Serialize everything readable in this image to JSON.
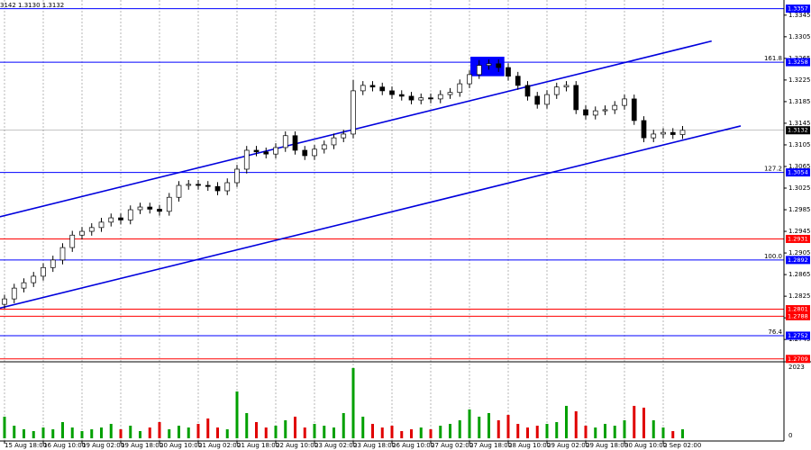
{
  "chart_data": {
    "type": "candlestick",
    "header": "3142 1.3130 1.3132",
    "categories": [
      "15 Aug 18:00",
      null,
      null,
      null,
      "16 Aug 10:00",
      null,
      null,
      null,
      "19 Aug 02:00",
      null,
      null,
      null,
      "19 Aug 18:00",
      null,
      null,
      null,
      "20 Aug 10:00",
      null,
      null,
      null,
      "21 Aug 02:00",
      null,
      null,
      null,
      "21 Aug 18:00",
      null,
      null,
      null,
      "22 Aug 10:00",
      null,
      null,
      null,
      "23 Aug 02:00",
      null,
      null,
      null,
      "23 Aug 18:00",
      null,
      null,
      null,
      "26 Aug 10:00",
      null,
      null,
      null,
      "27 Aug 02:00",
      null,
      null,
      null,
      "27 Aug 18:00",
      null,
      null,
      null,
      "28 Aug 10:00",
      null,
      null,
      null,
      "29 Aug 02:00",
      null,
      null,
      null,
      "29 Aug 18:00",
      null,
      null,
      null,
      "30 Aug 10:00",
      null,
      null,
      null,
      "2 Sep 02:00",
      null,
      null
    ],
    "open": [
      1.281,
      1.282,
      1.284,
      1.285,
      1.2862,
      1.2878,
      1.2892,
      1.2915,
      1.2938,
      1.2945,
      1.2952,
      1.2962,
      1.297,
      1.2966,
      1.2985,
      1.299,
      1.2986,
      1.2982,
      1.3008,
      1.303,
      1.3032,
      1.303,
      1.3028,
      1.302,
      1.3035,
      1.306,
      1.3095,
      1.3092,
      1.3088,
      1.31,
      1.3122,
      1.3095,
      1.3085,
      1.3097,
      1.3105,
      1.3118,
      1.3125,
      1.3205,
      1.3215,
      1.3212,
      1.3205,
      1.3198,
      1.3195,
      1.3188,
      1.3192,
      1.319,
      1.3198,
      1.3202,
      1.3218,
      1.3235,
      1.3252,
      1.3255,
      1.3248,
      1.3232,
      1.3215,
      1.3195,
      1.318,
      1.3198,
      1.3212,
      1.3215,
      1.317,
      1.316,
      1.3168,
      1.317,
      1.3178,
      1.319,
      1.315,
      1.3118,
      1.3125,
      1.3128,
      1.3124
    ],
    "high": [
      1.2828,
      1.2848,
      1.2858,
      1.287,
      1.2886,
      1.29,
      1.2923,
      1.2946,
      1.2953,
      1.296,
      1.297,
      1.2978,
      1.2978,
      1.2993,
      1.2998,
      1.2998,
      1.2994,
      1.3016,
      1.3038,
      1.304,
      1.304,
      1.3038,
      1.3036,
      1.3043,
      1.3068,
      1.3103,
      1.3103,
      1.31,
      1.3108,
      1.313,
      1.313,
      1.3103,
      1.3105,
      1.3113,
      1.3126,
      1.3133,
      1.3225,
      1.3223,
      1.3223,
      1.322,
      1.3213,
      1.3206,
      1.3203,
      1.32,
      1.32,
      1.3206,
      1.321,
      1.3226,
      1.3243,
      1.3262,
      1.3263,
      1.3263,
      1.3256,
      1.324,
      1.3223,
      1.3203,
      1.3206,
      1.322,
      1.3223,
      1.3223,
      1.3178,
      1.3176,
      1.3178,
      1.3186,
      1.3198,
      1.3198,
      1.3158,
      1.3133,
      1.3136,
      1.3136,
      1.314
    ],
    "low": [
      1.2802,
      1.2812,
      1.2832,
      1.2842,
      1.2854,
      1.287,
      1.2884,
      1.2907,
      1.293,
      1.2937,
      1.2944,
      1.2954,
      1.2958,
      1.2958,
      1.2977,
      1.2978,
      1.2974,
      1.2974,
      1.3,
      1.3022,
      1.3022,
      1.302,
      1.3012,
      1.3012,
      1.3027,
      1.3052,
      1.3084,
      1.308,
      1.308,
      1.3092,
      1.3087,
      1.3077,
      1.3077,
      1.3089,
      1.3097,
      1.311,
      1.3117,
      1.3197,
      1.3204,
      1.3197,
      1.319,
      1.3187,
      1.318,
      1.318,
      1.3182,
      1.3182,
      1.319,
      1.3194,
      1.321,
      1.3227,
      1.3244,
      1.324,
      1.3224,
      1.3207,
      1.3187,
      1.3172,
      1.3172,
      1.319,
      1.3204,
      1.3162,
      1.3152,
      1.3152,
      1.316,
      1.3162,
      1.317,
      1.3142,
      1.311,
      1.311,
      1.3117,
      1.3116,
      1.3116
    ],
    "close": [
      1.282,
      1.284,
      1.285,
      1.2862,
      1.2878,
      1.2892,
      1.2915,
      1.2938,
      1.2945,
      1.2952,
      1.2962,
      1.297,
      1.2966,
      1.2985,
      1.299,
      1.2986,
      1.2982,
      1.3008,
      1.303,
      1.3032,
      1.303,
      1.3028,
      1.302,
      1.3035,
      1.306,
      1.3095,
      1.3092,
      1.3088,
      1.31,
      1.3122,
      1.3095,
      1.3085,
      1.3097,
      1.3105,
      1.3118,
      1.3125,
      1.3205,
      1.3215,
      1.3212,
      1.3205,
      1.3198,
      1.3195,
      1.3188,
      1.3192,
      1.319,
      1.3198,
      1.3202,
      1.3218,
      1.3235,
      1.3252,
      1.3255,
      1.3248,
      1.3232,
      1.3215,
      1.3195,
      1.318,
      1.3198,
      1.3212,
      1.3215,
      1.317,
      1.316,
      1.3168,
      1.317,
      1.3178,
      1.319,
      1.315,
      1.3118,
      1.3125,
      1.3128,
      1.3124,
      1.3132
    ],
    "volume": [
      600,
      350,
      250,
      200,
      300,
      250,
      450,
      300,
      200,
      250,
      300,
      400,
      250,
      350,
      200,
      300,
      450,
      250,
      350,
      300,
      400,
      550,
      300,
      250,
      1300,
      700,
      450,
      300,
      350,
      500,
      600,
      300,
      400,
      350,
      300,
      700,
      1950,
      600,
      400,
      300,
      350,
      200,
      250,
      300,
      250,
      350,
      400,
      500,
      800,
      600,
      700,
      500,
      650,
      400,
      300,
      350,
      400,
      450,
      900,
      750,
      350,
      300,
      400,
      350,
      500,
      900,
      850,
      500,
      300,
      200,
      250
    ],
    "ylim": [
      1.2707,
      1.3373
    ],
    "yticks": [
      1.3345,
      1.3305,
      1.3265,
      1.3225,
      1.3185,
      1.3145,
      1.3105,
      1.3065,
      1.3025,
      1.2985,
      1.2945,
      1.2905,
      1.2865,
      1.2825,
      1.2785,
      1.2745
    ],
    "volume_ylim": [
      0,
      2023
    ],
    "volume_ticks": [
      2023,
      0
    ],
    "up_color": "#ffffff",
    "down_color": "#000000",
    "candle_outline": "#000000",
    "volume_up_color": "#00a000",
    "volume_down_color": "#e00000",
    "current_color": "#000000",
    "grid": true,
    "levels": [
      {
        "value": 1.3357,
        "color": "#0000ff"
      },
      {
        "value": 1.3258,
        "color": "#0000ff",
        "fib": "161.8"
      },
      {
        "value": 1.3054,
        "color": "#0000ff",
        "fib": "127.2"
      },
      {
        "value": 1.2931,
        "color": "#ff0000"
      },
      {
        "value": 1.2892,
        "color": "#0000ff",
        "fib": "100.0"
      },
      {
        "value": 1.2801,
        "color": "#ff0000"
      },
      {
        "value": 1.2788,
        "color": "#ff0000"
      },
      {
        "value": 1.2752,
        "color": "#0000ff",
        "fib": "76.4"
      },
      {
        "value": 1.2709,
        "color": "#ff0000"
      }
    ],
    "channel_lines": [
      {
        "x": [
          -0.47,
          73.0
        ],
        "y": [
          1.2972,
          1.3297
        ],
        "color": "#0000dd"
      },
      {
        "x": [
          -0.47,
          76.0
        ],
        "y": [
          1.2803,
          1.314
        ],
        "color": "#0000dd"
      }
    ],
    "zone": {
      "x": [
        48.1,
        51.6
      ],
      "y": [
        1.3232,
        1.3268
      ],
      "color": "#0000ff"
    }
  }
}
